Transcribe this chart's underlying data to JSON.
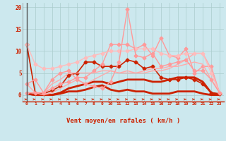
{
  "background_color": "#cce8ee",
  "grid_color": "#aacccc",
  "xlabel": "Vent moyen/en rafales ( km/h )",
  "xlabel_color": "#cc2200",
  "tick_color": "#cc2200",
  "x_ticks": [
    0,
    1,
    2,
    3,
    4,
    5,
    6,
    7,
    8,
    9,
    10,
    11,
    12,
    13,
    14,
    15,
    16,
    17,
    18,
    19,
    20,
    21,
    22,
    23
  ],
  "ylim": [
    -1.5,
    21
  ],
  "yticks": [
    0,
    5,
    10,
    15,
    20
  ],
  "lines": [
    {
      "y": [
        11.5,
        0.5,
        0.3,
        1.0,
        2.0,
        4.5,
        5.0,
        7.5,
        7.5,
        6.5,
        6.5,
        6.5,
        8.0,
        7.5,
        6.0,
        6.5,
        4.0,
        3.5,
        3.5,
        4.0,
        3.5,
        2.5,
        0.5,
        0.3
      ],
      "color": "#cc2200",
      "lw": 1.2,
      "marker": "D",
      "ms": 2.5
    },
    {
      "y": [
        2.5,
        3.5,
        0.5,
        1.5,
        2.5,
        3.0,
        4.0,
        4.0,
        5.5,
        7.0,
        11.5,
        11.5,
        11.5,
        10.5,
        11.5,
        9.0,
        13.0,
        9.0,
        8.5,
        10.5,
        5.0,
        6.5,
        6.5,
        0.5
      ],
      "color": "#ff9999",
      "lw": 1.0,
      "marker": "D",
      "ms": 2.5
    },
    {
      "y": [
        0.3,
        0.0,
        0.0,
        0.0,
        0.3,
        0.8,
        0.8,
        1.2,
        1.8,
        2.2,
        1.2,
        0.8,
        1.2,
        0.8,
        0.8,
        0.3,
        0.3,
        0.3,
        0.8,
        0.8,
        0.8,
        0.3,
        0.0,
        0.0
      ],
      "color": "#cc2200",
      "lw": 2.0,
      "marker": null,
      "ms": 0
    },
    {
      "y": [
        0.3,
        0.0,
        0.0,
        0.0,
        0.5,
        1.5,
        2.0,
        2.5,
        3.0,
        3.0,
        2.5,
        3.0,
        3.5,
        3.5,
        3.5,
        3.0,
        3.0,
        3.5,
        4.0,
        4.0,
        4.0,
        3.0,
        0.5,
        0.0
      ],
      "color": "#cc2200",
      "lw": 2.0,
      "marker": null,
      "ms": 0
    },
    {
      "y": [
        0.5,
        0.5,
        0.0,
        0.5,
        1.5,
        2.5,
        3.5,
        2.5,
        3.5,
        4.5,
        5.5,
        5.0,
        5.0,
        5.0,
        5.5,
        6.0,
        6.0,
        6.5,
        6.5,
        7.0,
        7.5,
        7.0,
        3.5,
        0.5
      ],
      "color": "#ffaaaa",
      "lw": 1.0,
      "marker": null,
      "ms": 0
    },
    {
      "y": [
        2.5,
        0.5,
        0.5,
        2.5,
        3.5,
        5.0,
        5.0,
        5.0,
        5.0,
        5.5,
        5.5,
        5.0,
        5.5,
        5.0,
        5.0,
        5.5,
        5.5,
        6.0,
        7.0,
        8.0,
        9.5,
        9.5,
        6.0,
        0.5
      ],
      "color": "#ffaaaa",
      "lw": 1.0,
      "marker": null,
      "ms": 0
    },
    {
      "y": [
        11.5,
        7.0,
        6.0,
        6.0,
        6.5,
        7.0,
        7.5,
        8.5,
        9.0,
        9.5,
        10.0,
        10.0,
        10.0,
        10.5,
        10.5,
        10.5,
        9.5,
        9.0,
        9.0,
        9.5,
        9.5,
        9.5,
        5.0,
        0.5
      ],
      "color": "#ffbbbb",
      "lw": 1.0,
      "marker": "D",
      "ms": 2.5
    },
    {
      "y": [
        0.5,
        0.5,
        0.5,
        3.5,
        5.0,
        5.5,
        3.5,
        2.5,
        2.0,
        1.5,
        3.0,
        7.5,
        19.5,
        9.0,
        8.5,
        9.5,
        6.5,
        7.0,
        7.5,
        8.0,
        5.5,
        5.5,
        3.5,
        0.5
      ],
      "color": "#ff9999",
      "lw": 1.0,
      "marker": "D",
      "ms": 2.5
    }
  ],
  "arrow_color": "#cc2200",
  "spine_color": "#cc2200",
  "left_spine_color": "#888888"
}
